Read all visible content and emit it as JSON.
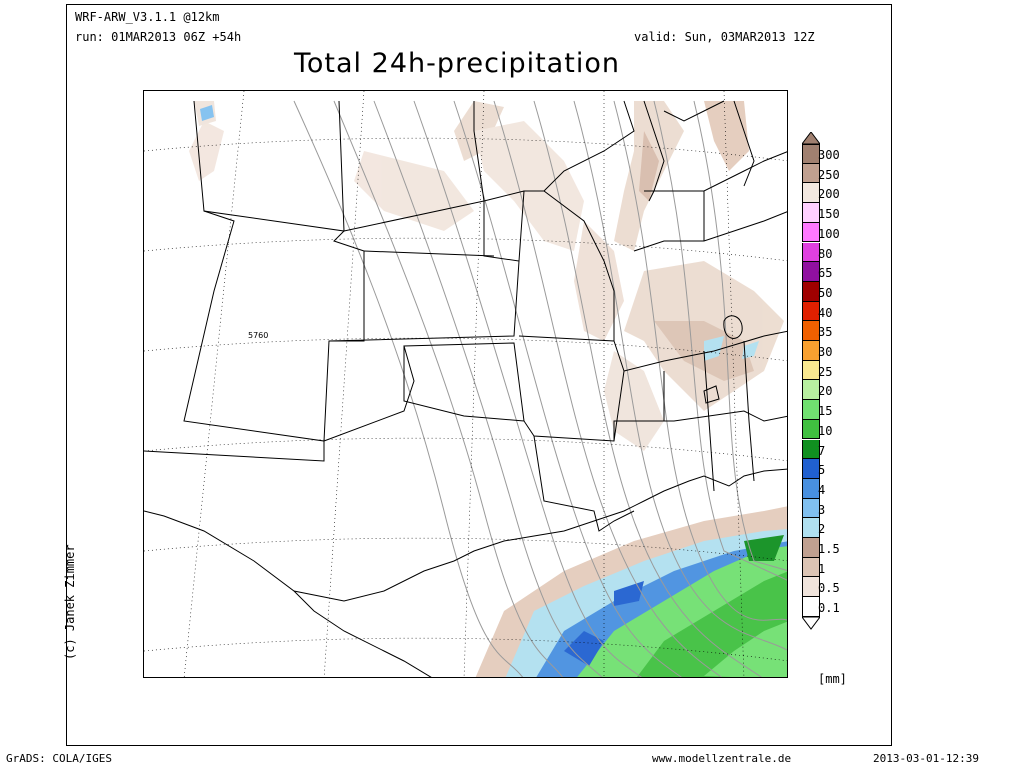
{
  "header": {
    "model": "WRF-ARW_V3.1.1 @12km",
    "run": "run: 01MAR2013 06Z +54h",
    "valid": "valid: Sun, 03MAR2013 12Z",
    "title": "Total 24h-precipitation"
  },
  "credit": "(c) Janek Zimmer",
  "map": {
    "contour_label": "5760"
  },
  "legend": {
    "unit": "[mm]",
    "levels": [
      {
        "label": "300",
        "color": "#a08070"
      },
      {
        "label": "250",
        "color": "#c0a090"
      },
      {
        "label": "200",
        "color": "#f2e8e0"
      },
      {
        "label": "150",
        "color": "#ffd0ff"
      },
      {
        "label": "100",
        "color": "#ff78ff"
      },
      {
        "label": "80",
        "color": "#e040e0"
      },
      {
        "label": "65",
        "color": "#9010a0"
      },
      {
        "label": "50",
        "color": "#a00000"
      },
      {
        "label": "40",
        "color": "#e02000"
      },
      {
        "label": "35",
        "color": "#f06000"
      },
      {
        "label": "30",
        "color": "#f8a030"
      },
      {
        "label": "25",
        "color": "#f8e890"
      },
      {
        "label": "20",
        "color": "#b8f0a0"
      },
      {
        "label": "15",
        "color": "#70e070"
      },
      {
        "label": "10",
        "color": "#40c040"
      },
      {
        "label": "7",
        "color": "#109020"
      },
      {
        "label": "5",
        "color": "#2060d0"
      },
      {
        "label": "4",
        "color": "#4890e0"
      },
      {
        "label": "3",
        "color": "#80c0f0"
      },
      {
        "label": "2",
        "color": "#b0e0f0"
      },
      {
        "label": "1.5",
        "color": "#c0a090"
      },
      {
        "label": "1",
        "color": "#dcc4b4"
      },
      {
        "label": "0.5",
        "color": "#f0e4dc"
      },
      {
        "label": "0.1",
        "color": "#ffffff"
      }
    ]
  },
  "footer": {
    "grads": "GrADS: COLA/IGES",
    "site": "www.modellzentrale.de",
    "timestamp": "2013-03-01-12:39"
  }
}
